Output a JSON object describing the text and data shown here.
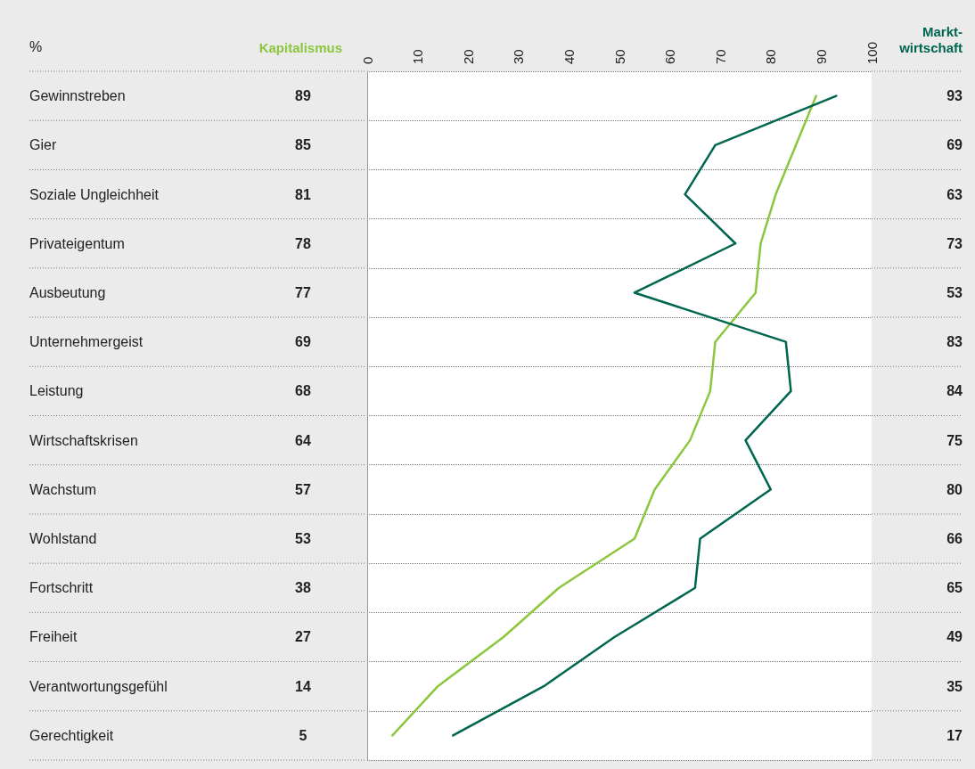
{
  "chart_data": {
    "type": "line",
    "xlabel": "%",
    "orientation": "horizontal",
    "categories": [
      "Gewinnstreben",
      "Gier",
      "Soziale Ungleichheit",
      "Privateigentum",
      "Ausbeutung",
      "Unternehmergeist",
      "Leistung",
      "Wirtschaftskrisen",
      "Wachstum",
      "Wohlstand",
      "Fortschritt",
      "Freiheit",
      "Verantwortungsgefühl",
      "Gerechtigkeit"
    ],
    "series": [
      {
        "name": "Kapitalismus",
        "color": "#8cc63e",
        "values": [
          89,
          85,
          81,
          78,
          77,
          69,
          68,
          64,
          57,
          53,
          38,
          27,
          14,
          5
        ]
      },
      {
        "name": "Markt-\nwirtschaft",
        "color": "#00664f",
        "values": [
          93,
          69,
          63,
          73,
          53,
          83,
          84,
          75,
          80,
          66,
          65,
          49,
          35,
          17
        ]
      }
    ],
    "x2lim": [
      0,
      100
    ],
    "x2ticks": [
      0,
      10,
      20,
      30,
      40,
      50,
      60,
      70,
      80,
      90,
      100
    ],
    "data_labels": true,
    "grid": "y",
    "marker": "none",
    "line_style": "solid"
  }
}
